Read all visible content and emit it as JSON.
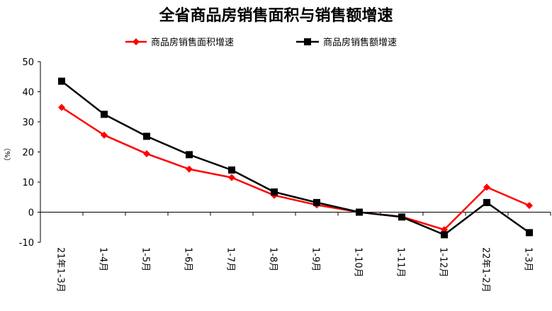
{
  "chart_data": {
    "type": "line",
    "title": "全省商品房销售面积与销售额增速",
    "ylabel": "（%）",
    "xlabel": "",
    "ylim": [
      -10,
      50
    ],
    "yticks": [
      -10,
      0,
      10,
      20,
      30,
      40,
      50
    ],
    "categories": [
      "21年1-3月",
      "1-4月",
      "1-5月",
      "1-6月",
      "1-7月",
      "1-8月",
      "1-9月",
      "1-10月",
      "1-11月",
      "1-12月",
      "22年1-2月",
      "1-3月"
    ],
    "legend_position": "top",
    "series": [
      {
        "name": "商品房销售面积增速",
        "color": "#ff0000",
        "marker": "diamond",
        "values": [
          34.8,
          25.6,
          19.4,
          14.3,
          11.5,
          5.6,
          2.4,
          0.0,
          -1.5,
          -5.8,
          8.3,
          2.2
        ]
      },
      {
        "name": "商品房销售额增速",
        "color": "#000000",
        "marker": "square",
        "values": [
          43.5,
          32.5,
          25.2,
          19.1,
          14.0,
          6.7,
          3.2,
          0.0,
          -1.6,
          -7.5,
          3.2,
          -6.8
        ]
      }
    ]
  }
}
